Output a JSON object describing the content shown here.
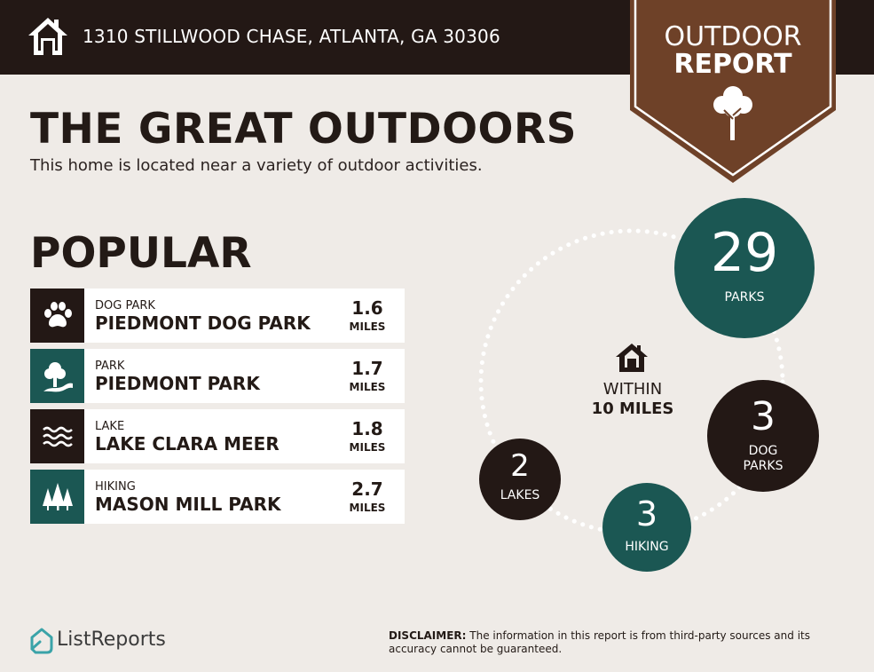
{
  "header": {
    "address": "1310 STILLWOOD CHASE, ATLANTA, GA 30306",
    "badge_line1": "OUTDOOR",
    "badge_line2": "REPORT",
    "icons": [
      "house-icon",
      "tree-icon"
    ]
  },
  "title": "THE GREAT OUTDOORS",
  "subtitle": "This home is located near a variety of outdoor activities.",
  "popular": {
    "heading": "POPULAR",
    "items": [
      {
        "type": "DOG PARK",
        "name": "PIEDMONT DOG PARK",
        "distance": "1.6",
        "unit": "MILES",
        "icon": "paw-icon",
        "icon_color": "#231815"
      },
      {
        "type": "PARK",
        "name": "PIEDMONT PARK",
        "distance": "1.7",
        "unit": "MILES",
        "icon": "park-tree-icon",
        "icon_color": "#1b5753"
      },
      {
        "type": "LAKE",
        "name": "LAKE CLARA MEER",
        "distance": "1.8",
        "unit": "MILES",
        "icon": "waves-icon",
        "icon_color": "#231815"
      },
      {
        "type": "HIKING",
        "name": "MASON MILL PARK",
        "distance": "2.7",
        "unit": "MILES",
        "icon": "pine-trees-icon",
        "icon_color": "#1b5753"
      }
    ]
  },
  "radius": {
    "line1": "WITHIN",
    "line2": "10 MILES",
    "stats": [
      {
        "value": "29",
        "label": "PARKS",
        "color": "#1b5753"
      },
      {
        "value": "3",
        "label": "DOG PARKS",
        "color": "#231815"
      },
      {
        "value": "3",
        "label": "HIKING",
        "color": "#1b5753"
      },
      {
        "value": "2",
        "label": "LAKES",
        "color": "#231815"
      }
    ]
  },
  "footer": {
    "brand": "ListReports",
    "disclaimer_label": "DISCLAIMER:",
    "disclaimer_text": " The information in this report is from third-party sources and its accuracy cannot be guaranteed."
  },
  "colors": {
    "background": "#efebe7",
    "header": "#231815",
    "badge": "#6e4128",
    "teal": "#1b5753",
    "dark": "#231815",
    "logo": "#3aa3a8"
  }
}
